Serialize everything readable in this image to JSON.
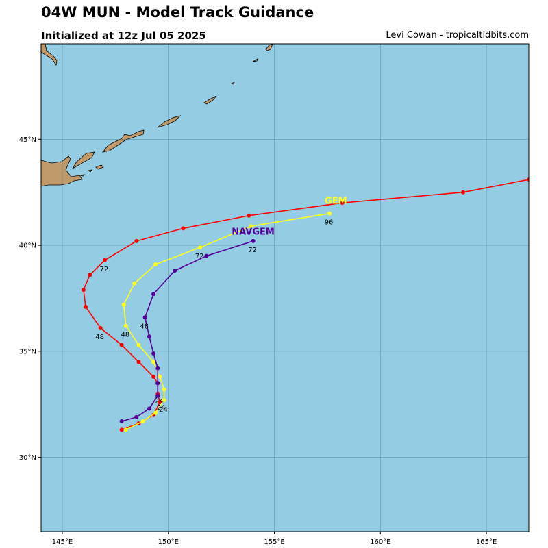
{
  "header": {
    "title": "04W MUN - Model Track Guidance",
    "subtitle": "Initialized at 12z Jul 05 2025",
    "credit": "Levi Cowan - tropicaltidbits.com"
  },
  "colors": {
    "ocean": "#94cde3",
    "land": "#c0996b",
    "grid": "#4a7a8a"
  },
  "chart_data": {
    "type": "line",
    "xlim": [
      144,
      167
    ],
    "ylim": [
      26.5,
      49.5
    ],
    "xticks": [
      {
        "v": 145,
        "label": "145°E"
      },
      {
        "v": 150,
        "label": "150°E"
      },
      {
        "v": 155,
        "label": "155°E"
      },
      {
        "v": 160,
        "label": "160°E"
      },
      {
        "v": 165,
        "label": "165°E"
      }
    ],
    "yticks": [
      {
        "v": 30,
        "label": "30°N"
      },
      {
        "v": 35,
        "label": "35°N"
      },
      {
        "v": 40,
        "label": "40°N"
      },
      {
        "v": 45,
        "label": "45°N"
      }
    ],
    "grid": true,
    "series": [
      {
        "color": "#ff0000",
        "points": [
          [
            147.8,
            31.3
          ],
          [
            148.6,
            31.6
          ],
          [
            149.3,
            32.0
          ],
          [
            149.6,
            32.6
          ],
          [
            149.5,
            33.0
          ],
          [
            149.5,
            33.5
          ],
          [
            149.3,
            33.8
          ],
          [
            148.6,
            34.5
          ],
          [
            147.8,
            35.3
          ],
          [
            146.8,
            36.1
          ],
          [
            146.1,
            37.1
          ],
          [
            146.0,
            37.9
          ],
          [
            146.3,
            38.6
          ],
          [
            147.0,
            39.3
          ],
          [
            148.5,
            40.2
          ],
          [
            150.7,
            40.8
          ],
          [
            153.8,
            41.4
          ],
          [
            158.2,
            42.0
          ],
          [
            163.9,
            42.5
          ],
          [
            167.0,
            43.1
          ]
        ],
        "hour_labels": [
          {
            "x": 146.8,
            "y": 36.1,
            "label": "48"
          },
          {
            "x": 147.0,
            "y": 39.3,
            "label": "72"
          }
        ]
      },
      {
        "name": "GEM",
        "color": "#ffff1a",
        "points": [
          [
            148.0,
            31.3
          ],
          [
            148.8,
            31.7
          ],
          [
            149.4,
            32.1
          ],
          [
            149.8,
            32.7
          ],
          [
            149.8,
            33.2
          ],
          [
            149.6,
            33.8
          ],
          [
            149.3,
            34.5
          ],
          [
            148.6,
            35.3
          ],
          [
            148.0,
            36.2
          ],
          [
            147.9,
            37.2
          ],
          [
            148.4,
            38.2
          ],
          [
            149.4,
            39.1
          ],
          [
            151.5,
            39.9
          ],
          [
            153.9,
            40.9
          ],
          [
            157.6,
            41.5
          ]
        ],
        "hour_labels": [
          {
            "x": 148.0,
            "y": 36.2,
            "label": "48"
          },
          {
            "x": 151.5,
            "y": 39.9,
            "label": "72"
          },
          {
            "x": 157.6,
            "y": 41.5,
            "label": "96"
          }
        ],
        "name_pos": [
          157.9,
          41.95
        ]
      },
      {
        "name": "NAVGEM",
        "color": "#550099",
        "points": [
          [
            147.8,
            31.7
          ],
          [
            148.5,
            31.9
          ],
          [
            149.1,
            32.3
          ],
          [
            149.5,
            32.9
          ],
          [
            149.5,
            33.5
          ],
          [
            149.5,
            34.2
          ],
          [
            149.3,
            34.9
          ],
          [
            149.1,
            35.7
          ],
          [
            148.9,
            36.6
          ],
          [
            149.3,
            37.7
          ],
          [
            150.3,
            38.8
          ],
          [
            151.8,
            39.5
          ],
          [
            154.0,
            40.2
          ]
        ],
        "hour_labels": [
          {
            "x": 148.9,
            "y": 36.6,
            "label": "48"
          },
          {
            "x": 154.0,
            "y": 40.2,
            "label": "72"
          }
        ],
        "name_pos": [
          154.0,
          40.5
        ]
      }
    ],
    "extra_labels": [
      {
        "x": 149.5,
        "y": 33.0,
        "label": "24"
      },
      {
        "x": 149.7,
        "y": 32.6,
        "label": "24"
      },
      {
        "x": 149.6,
        "y": 32.7,
        "label": "24"
      }
    ]
  }
}
